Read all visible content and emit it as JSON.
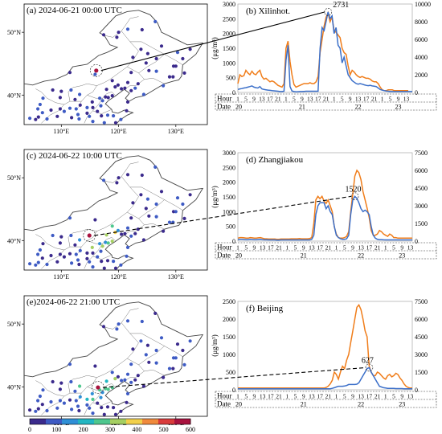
{
  "maps": [
    {
      "label": "(a) 2024-06-21 00:00 UTC",
      "lat_ticks": [
        "50°N",
        "40°N"
      ],
      "lon_ticks": [
        "110°E",
        "120°E",
        "130°E"
      ],
      "highlight": {
        "lon": 116.1,
        "lat": 43.9,
        "value": 2731
      }
    },
    {
      "label": "(c) 2024-06-22 10:00 UTC",
      "lat_ticks": [
        "50°N",
        "40°N"
      ],
      "lon_ticks": [
        "110°E",
        "120°E",
        "130°E"
      ],
      "highlight": {
        "lon": 114.9,
        "lat": 40.8,
        "value": 1520
      }
    },
    {
      "label": "(e)2024-06-22 21:00 UTC",
      "lat_ticks": [
        "50°N",
        "40°N"
      ],
      "lon_ticks": [
        "110°E",
        "120°E",
        "130°E"
      ],
      "highlight": {
        "lon": 116.4,
        "lat": 39.9,
        "value": 627
      }
    }
  ],
  "colorbar": {
    "ticks": [
      "0",
      "100",
      "200",
      "300",
      "400",
      "500",
      "600"
    ],
    "range": [
      0,
      600
    ],
    "colors": [
      "#3b2a8c",
      "#3e5bc4",
      "#2f8fd6",
      "#22b6c2",
      "#4ec78e",
      "#a5cf62",
      "#f2d04b",
      "#f08a3c",
      "#d93b3b",
      "#a8123e"
    ]
  },
  "colors": {
    "pm25": "#3b6fc9",
    "pm10": "#f07d1a"
  },
  "timeline": {
    "hour_label": "Hour",
    "date_label": "Date",
    "hour_ticks": [
      "1",
      "5",
      "9",
      "13",
      "17",
      "21"
    ],
    "dates": [
      "20",
      "21",
      "22",
      "23"
    ]
  },
  "chart_data": [
    {
      "type": "line",
      "title": "(b) Xilinhot.",
      "ylabel": "(μg/m³)",
      "y_left_lim": [
        0,
        3000
      ],
      "y_right_lim": [
        0,
        10000
      ],
      "y_left_ticks": [
        "0",
        "500",
        "1000",
        "1500",
        "2000",
        "2500",
        "3000"
      ],
      "y_right_ticks": [
        "0",
        "2000",
        "4000",
        "6000",
        "8000",
        "10000"
      ],
      "peak_label": "2731",
      "peak_index": 45,
      "series": [
        {
          "axis": "left",
          "values": [
            100,
            120,
            130,
            150,
            160,
            180,
            200,
            220,
            180,
            160,
            150,
            200,
            120,
            100,
            90,
            80,
            70,
            60,
            55,
            50,
            40,
            30,
            30,
            40,
            1100,
            1600,
            200,
            50,
            30,
            20,
            25,
            30,
            30,
            35,
            40,
            40,
            40,
            40,
            40,
            40,
            40,
            1500,
            2200,
            2100,
            2400,
            2731,
            2500,
            2600,
            2000,
            2200,
            1600,
            1500,
            1000,
            1200,
            900,
            600,
            500,
            400,
            350,
            300,
            280,
            300,
            280,
            260,
            240,
            230,
            240,
            220,
            210,
            200,
            150,
            100,
            80,
            60,
            50,
            40,
            30,
            30,
            30,
            30,
            30,
            30,
            30,
            30,
            30,
            30,
            30,
            30
          ]
        },
        {
          "axis": "right",
          "values": [
            1000,
            2000,
            1800,
            1900,
            2500,
            2200,
            2000,
            2400,
            2100,
            2000,
            2300,
            2500,
            1800,
            1500,
            1600,
            1400,
            1200,
            1300,
            1200,
            1000,
            800,
            700,
            600,
            1000,
            5000,
            5800,
            3500,
            2000,
            900,
            600,
            700,
            800,
            900,
            1000,
            1000,
            1000,
            1100,
            1000,
            1000,
            1200,
            1800,
            4500,
            6000,
            7500,
            8500,
            9000,
            8000,
            8500,
            7000,
            6800,
            6500,
            6200,
            5000,
            4500,
            4300,
            3000,
            2000,
            2500,
            2300,
            2000,
            1800,
            1700,
            1800,
            1700,
            1600,
            1600,
            1500,
            1300,
            1200,
            1200,
            1000,
            600,
            300,
            200,
            200,
            300,
            300,
            300,
            200,
            200,
            200,
            200,
            200,
            200,
            200,
            200
          ]
        }
      ]
    },
    {
      "type": "line",
      "title": "(d) Zhangjiakou",
      "ylabel": "(μg/m³)",
      "y_left_lim": [
        0,
        3000
      ],
      "y_right_lim": [
        0,
        7500
      ],
      "y_left_ticks": [
        "0",
        "500",
        "1000",
        "1500",
        "2000",
        "2500",
        "3000"
      ],
      "y_right_ticks": [
        "0",
        "1500",
        "3000",
        "4500",
        "6000",
        "7500"
      ],
      "peak_label": "1520",
      "peak_index": 57,
      "series": [
        {
          "axis": "left",
          "values": [
            50,
            60,
            60,
            55,
            50,
            50,
            60,
            55,
            50,
            50,
            55,
            60,
            50,
            45,
            45,
            40,
            40,
            40,
            40,
            35,
            35,
            40,
            40,
            40,
            40,
            40,
            40,
            40,
            40,
            40,
            40,
            40,
            40,
            40,
            40,
            40,
            60,
            200,
            900,
            1200,
            1300,
            1300,
            1300,
            1100,
            1200,
            1000,
            900,
            500,
            200,
            120,
            80,
            60,
            60,
            80,
            200,
            900,
            1400,
            1520,
            1450,
            1300,
            1100,
            1000,
            1050,
            1000,
            900,
            500,
            200,
            100,
            60,
            50,
            50,
            45,
            40,
            40,
            40,
            40,
            40,
            40,
            40,
            40,
            40,
            40,
            40,
            40,
            40,
            40
          ]
        },
        {
          "axis": "right",
          "values": [
            250,
            300,
            300,
            280,
            250,
            250,
            300,
            280,
            250,
            250,
            280,
            300,
            250,
            200,
            200,
            180,
            180,
            180,
            180,
            150,
            150,
            180,
            180,
            180,
            180,
            180,
            200,
            200,
            200,
            200,
            220,
            200,
            200,
            200,
            200,
            220,
            300,
            1500,
            3500,
            3800,
            3600,
            3800,
            3400,
            3200,
            3500,
            3000,
            2500,
            1200,
            600,
            300,
            250,
            250,
            300,
            400,
            800,
            2500,
            4000,
            5500,
            6000,
            5800,
            5200,
            4200,
            3500,
            2800,
            2000,
            900,
            500,
            500,
            600,
            900,
            800,
            600,
            500,
            400,
            600,
            500,
            300,
            300,
            250,
            250,
            250,
            250,
            250,
            250,
            250,
            250
          ]
        }
      ]
    },
    {
      "type": "line",
      "title": "(f) Beijing",
      "ylabel": "(μg/m³)",
      "y_left_lim": [
        0,
        2500
      ],
      "y_right_lim": [
        0,
        7500
      ],
      "y_left_ticks": [
        "0",
        "500",
        "1000",
        "1500",
        "2000",
        "2500"
      ],
      "y_right_ticks": [
        "0",
        "1500",
        "3000",
        "4500",
        "6000",
        "7500"
      ],
      "peak_label": "627",
      "peak_index": 64,
      "series": [
        {
          "axis": "left",
          "values": [
            30,
            30,
            30,
            30,
            30,
            30,
            30,
            30,
            30,
            30,
            30,
            30,
            30,
            30,
            30,
            30,
            30,
            30,
            30,
            30,
            30,
            30,
            30,
            30,
            30,
            30,
            30,
            30,
            30,
            30,
            30,
            30,
            30,
            30,
            30,
            30,
            30,
            30,
            30,
            30,
            30,
            30,
            30,
            30,
            30,
            30,
            40,
            60,
            80,
            100,
            100,
            100,
            110,
            120,
            150,
            150,
            150,
            150,
            160,
            200,
            300,
            400,
            500,
            600,
            627,
            500,
            400,
            300,
            200,
            100,
            80,
            60,
            50,
            40,
            40,
            40,
            40,
            35,
            35,
            35,
            35,
            30,
            30,
            30,
            30,
            30
          ]
        },
        {
          "axis": "right",
          "values": [
            150,
            150,
            150,
            150,
            150,
            150,
            150,
            150,
            150,
            150,
            150,
            150,
            150,
            150,
            150,
            150,
            150,
            150,
            150,
            150,
            150,
            150,
            150,
            150,
            150,
            150,
            150,
            150,
            150,
            150,
            150,
            150,
            150,
            150,
            150,
            150,
            150,
            150,
            150,
            150,
            150,
            150,
            150,
            200,
            300,
            500,
            800,
            1500,
            1300,
            900,
            1500,
            2000,
            1800,
            2500,
            3000,
            4000,
            5000,
            6000,
            7000,
            7200,
            6800,
            6000,
            5000,
            4500,
            2000,
            1500,
            1200,
            1200,
            1500,
            1400,
            1200,
            1000,
            900,
            1200,
            1300,
            1100,
            1200,
            1400,
            1300,
            1000,
            800,
            500,
            300,
            200,
            150,
            150
          ]
        }
      ]
    }
  ]
}
